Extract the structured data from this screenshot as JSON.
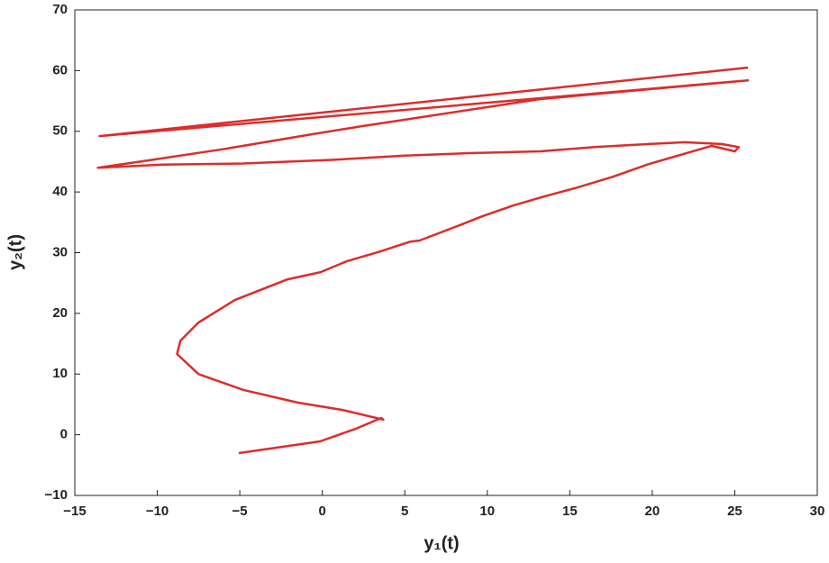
{
  "chart_data": {
    "type": "line",
    "x_label": "y₁(t)",
    "y_label": "y₂(t)",
    "x": [
      -5.06,
      -0.14,
      2.04,
      3.57,
      3.7,
      1.2,
      -1.5,
      -4.8,
      -7.5,
      -8.8,
      -8.6,
      -7.5,
      -5.3,
      -2.1,
      -0.1,
      1.5,
      3.4,
      5.3,
      5.9,
      8.3,
      9.7,
      11.6,
      13.5,
      15.4,
      17.6,
      19.8,
      21.7,
      23.6,
      25.0,
      25.25,
      24.2,
      22.0,
      19.8,
      16.5,
      13.2,
      8.9,
      5.0,
      0.7,
      -4.8,
      -9.7,
      -13.6,
      -11.3,
      -5.9,
      -0.4,
      2.3,
      13.2,
      25.8,
      -13.5,
      25.8
    ],
    "values": [
      -3.03,
      -1.1,
      1.0,
      2.76,
      2.5,
      4.1,
      5.3,
      7.4,
      10,
      13.3,
      15.5,
      18.5,
      22.2,
      25.6,
      26.8,
      28.6,
      30.1,
      31.8,
      32,
      34.5,
      36,
      37.8,
      39.3,
      40.7,
      42.5,
      44.6,
      46.1,
      47.6,
      46.7,
      47.4,
      47.9,
      48.2,
      47.9,
      47.4,
      46.7,
      46.4,
      46.0,
      45.3,
      44.7,
      44.5,
      44.0,
      44.9,
      47.1,
      49.6,
      50.8,
      55.3,
      58.4,
      49.2,
      60.5
    ],
    "color": "#dd2c2c",
    "xlim": [
      -15,
      30
    ],
    "xticks": [
      {
        "value": -15,
        "label": "−15"
      },
      {
        "value": -10,
        "label": "−10"
      },
      {
        "value": -5,
        "label": "−5"
      },
      0,
      5,
      10,
      15,
      20,
      25,
      30
    ],
    "ylim": [
      -10,
      70
    ],
    "yticks": [
      {
        "value": -10,
        "label": "−10"
      },
      0,
      10,
      20,
      30,
      40,
      50,
      60,
      70
    ]
  }
}
